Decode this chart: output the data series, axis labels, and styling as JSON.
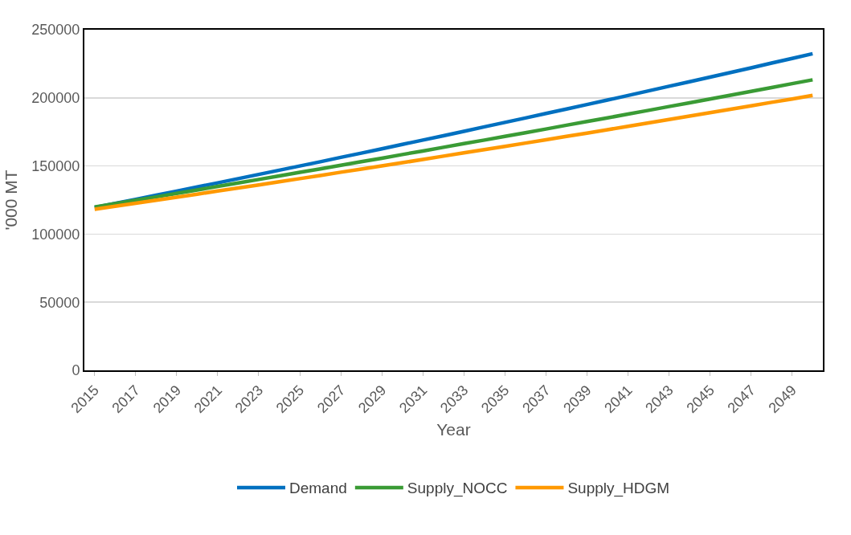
{
  "chart_data": {
    "type": "line",
    "xlabel": "Year",
    "ylabel": "'000 MT",
    "categories": [
      "2015",
      null,
      "2017",
      null,
      "2019",
      null,
      "2021",
      null,
      "2023",
      null,
      "2025",
      null,
      "2027",
      null,
      "2029",
      null,
      "2031",
      null,
      "2033",
      null,
      "2035",
      null,
      "2037",
      null,
      "2039",
      null,
      "2041",
      null,
      "2043",
      null,
      "2045",
      null,
      "2047",
      null,
      "2049",
      null
    ],
    "series": [
      {
        "name": "Demand",
        "color": "#0070c0",
        "values": [
          119500,
          122500,
          125500,
          128500,
          131500,
          134600,
          137600,
          140700,
          143800,
          146900,
          150000,
          153100,
          156300,
          159400,
          162600,
          165800,
          169000,
          172200,
          175400,
          178700,
          182000,
          185200,
          188500,
          191800,
          195100,
          198400,
          201700,
          205100,
          208500,
          211800,
          215200,
          218600,
          222000,
          225500,
          228900,
          232400
        ]
      },
      {
        "name": "Supply_NOCC",
        "color": "#3a9b35",
        "values": [
          119800,
          122300,
          124800,
          127300,
          129900,
          132400,
          135000,
          137500,
          140100,
          142700,
          145300,
          147900,
          150500,
          153100,
          155700,
          158400,
          161000,
          163700,
          166400,
          169000,
          171700,
          174400,
          177100,
          179900,
          182600,
          185300,
          188100,
          190800,
          193600,
          196300,
          199100,
          201900,
          204700,
          207500,
          210400,
          213200
        ]
      },
      {
        "name": "Supply_HDGM",
        "color": "#ff9900",
        "values": [
          118200,
          120400,
          122600,
          124800,
          127100,
          129300,
          131600,
          133900,
          136100,
          138400,
          140700,
          143000,
          145400,
          147700,
          150100,
          152400,
          154800,
          157200,
          159600,
          162000,
          164400,
          166800,
          169200,
          171700,
          174100,
          176600,
          179100,
          181600,
          184100,
          186600,
          189100,
          191600,
          194100,
          196700,
          199200,
          201800
        ]
      }
    ],
    "ylim": [
      0,
      250000
    ],
    "yticks": [
      0,
      50000,
      100000,
      150000,
      200000,
      250000
    ],
    "grid": "y",
    "legend": "bottom",
    "marker": "none",
    "line_style": "solid"
  }
}
